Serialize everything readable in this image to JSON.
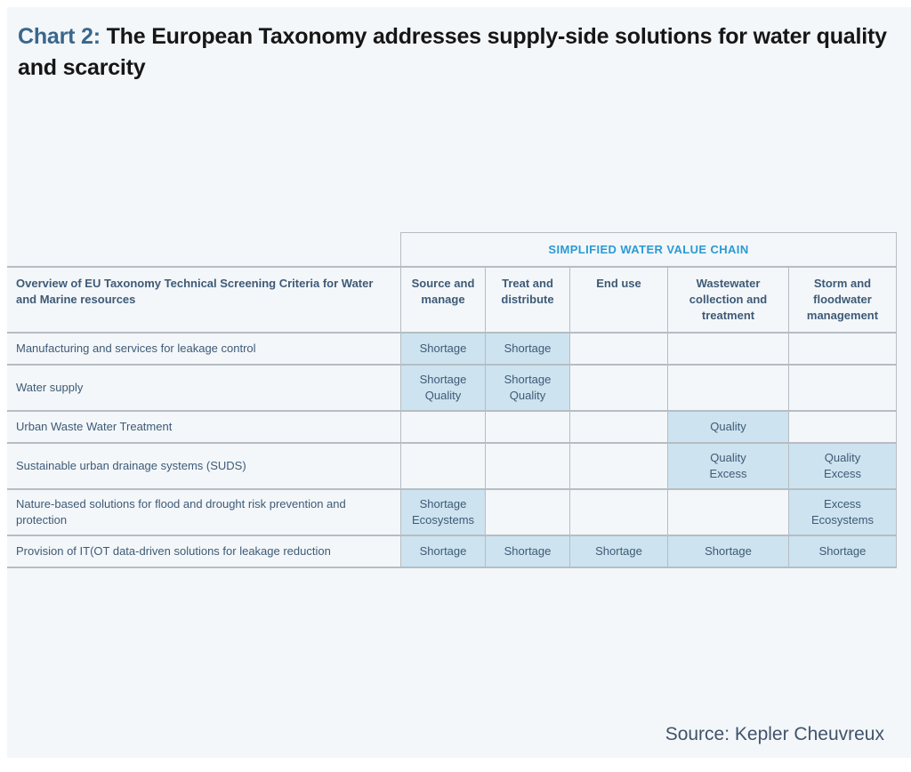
{
  "title": {
    "prefix": "Chart 2:",
    "text": " The European Taxonomy addresses supply-side solutions for water quality and scarcity"
  },
  "table": {
    "banner": "SIMPLIFIED WATER VALUE CHAIN",
    "row_header": "Overview of EU Taxonomy Technical Screening Criteria for Water and Marine resources",
    "columns": [
      "Source and manage",
      "Treat and distribute",
      "End use",
      "Wastewater collection and treatment",
      "Storm and floodwater management"
    ],
    "rows": [
      {
        "label": "Manufacturing and services for leakage control",
        "cells": [
          {
            "text": "Shortage",
            "highlighted": true
          },
          {
            "text": "Shortage",
            "highlighted": true
          },
          {
            "text": "",
            "highlighted": false
          },
          {
            "text": "",
            "highlighted": false
          },
          {
            "text": "",
            "highlighted": false
          }
        ]
      },
      {
        "label": "Water supply",
        "cells": [
          {
            "text": "Shortage\nQuality",
            "highlighted": true
          },
          {
            "text": "Shortage\nQuality",
            "highlighted": true
          },
          {
            "text": "",
            "highlighted": false
          },
          {
            "text": "",
            "highlighted": false
          },
          {
            "text": "",
            "highlighted": false
          }
        ]
      },
      {
        "label": "Urban Waste Water Treatment",
        "cells": [
          {
            "text": "",
            "highlighted": false
          },
          {
            "text": "",
            "highlighted": false
          },
          {
            "text": "",
            "highlighted": false
          },
          {
            "text": "Quality",
            "highlighted": true
          },
          {
            "text": "",
            "highlighted": false
          }
        ]
      },
      {
        "label": "Sustainable urban drainage systems (SUDS)",
        "cells": [
          {
            "text": "",
            "highlighted": false
          },
          {
            "text": "",
            "highlighted": false
          },
          {
            "text": "",
            "highlighted": false
          },
          {
            "text": "Quality\nExcess",
            "highlighted": true
          },
          {
            "text": "Quality\nExcess",
            "highlighted": true
          }
        ]
      },
      {
        "label": "Nature-based solutions for flood and drought risk prevention and protection",
        "cells": [
          {
            "text": "Shortage\nEcosystems",
            "highlighted": true
          },
          {
            "text": "",
            "highlighted": false
          },
          {
            "text": "",
            "highlighted": false
          },
          {
            "text": "",
            "highlighted": false
          },
          {
            "text": "Excess\nEcosystems",
            "highlighted": true
          }
        ]
      },
      {
        "label": "Provision of IT(OT data-driven solutions for leakage reduction",
        "cells": [
          {
            "text": "Shortage",
            "highlighted": true
          },
          {
            "text": "Shortage",
            "highlighted": true
          },
          {
            "text": "Shortage",
            "highlighted": true
          },
          {
            "text": "Shortage",
            "highlighted": true
          },
          {
            "text": "Shortage",
            "highlighted": true
          }
        ]
      }
    ]
  },
  "source": "Source: Kepler Cheuvreux",
  "colors": {
    "panel_background": "#f3f7fa",
    "banner_text": "#2a9ad5",
    "title_prefix": "#39678d",
    "cell_highlight": "#cde3ef",
    "table_text": "#3e5a76",
    "grid_border": "#b6bdc3"
  }
}
